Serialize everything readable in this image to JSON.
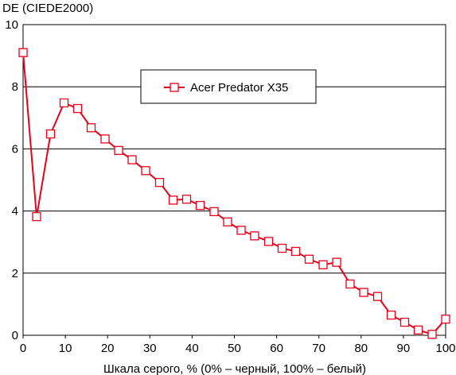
{
  "chart_data": {
    "type": "line",
    "title": "",
    "ylabel": "DE (CIEDE2000)",
    "xlabel": "Шкала серого, % (0% – черный, 100% – белый)",
    "xlim": [
      0,
      100
    ],
    "ylim": [
      0,
      10
    ],
    "x_ticks": [
      "0",
      "10",
      "20",
      "30",
      "40",
      "50",
      "60",
      "70",
      "80",
      "90",
      "100"
    ],
    "y_ticks": [
      "0",
      "2",
      "4",
      "6",
      "8",
      "10"
    ],
    "grid": "horizontal",
    "legend_position": "top-center",
    "series": [
      {
        "name": "Acer Predator X35",
        "color": "#e8001c",
        "marker": "square-open",
        "x": [
          0,
          3.2,
          6.5,
          9.7,
          12.9,
          16.1,
          19.4,
          22.6,
          25.8,
          29.0,
          32.3,
          35.5,
          38.7,
          41.9,
          45.2,
          48.4,
          51.6,
          54.8,
          58.1,
          61.3,
          64.5,
          67.7,
          71.0,
          74.2,
          77.4,
          80.6,
          83.9,
          87.1,
          90.3,
          93.5,
          96.8,
          100
        ],
        "y": [
          9.1,
          3.82,
          6.48,
          7.48,
          7.3,
          6.68,
          6.32,
          5.95,
          5.65,
          5.3,
          4.92,
          4.35,
          4.38,
          4.18,
          3.98,
          3.65,
          3.38,
          3.2,
          3.02,
          2.8,
          2.7,
          2.45,
          2.27,
          2.35,
          1.65,
          1.38,
          1.25,
          0.65,
          0.42,
          0.17,
          0.03,
          0.52
        ]
      }
    ]
  }
}
